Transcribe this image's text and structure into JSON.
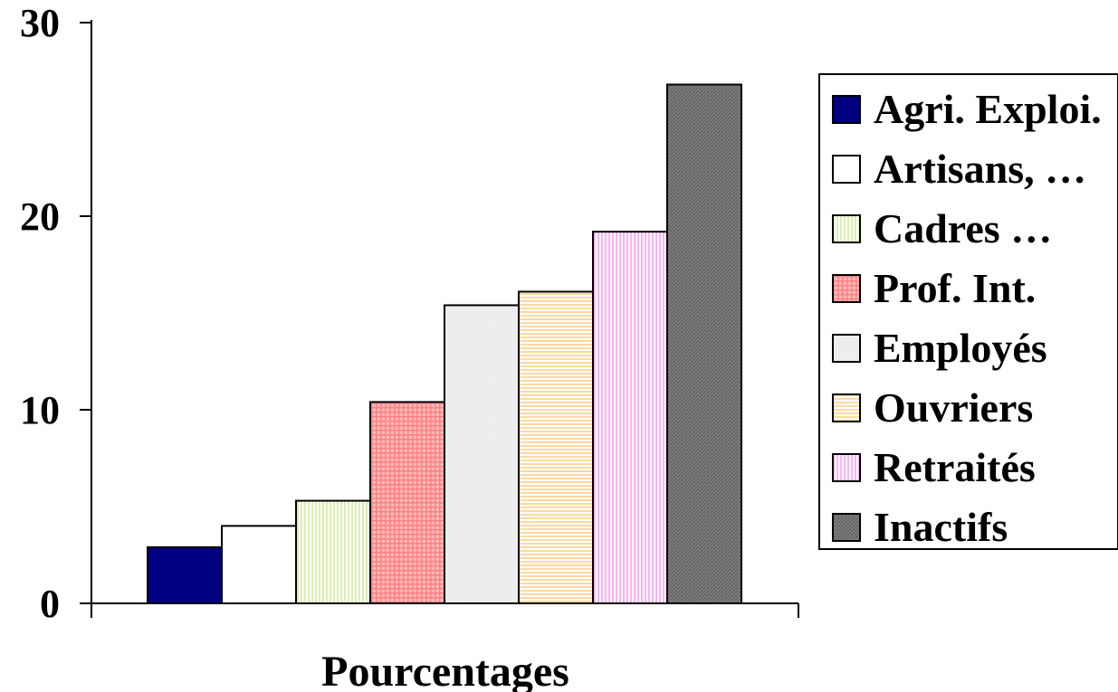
{
  "chart_data": {
    "type": "bar",
    "xlabel": "Pourcentages",
    "ylabel": "",
    "ylim": [
      0,
      30
    ],
    "yticks": [
      0,
      10,
      20,
      30
    ],
    "legend_position": "right",
    "grid": false,
    "series": [
      {
        "name": "Agri. Exploi.",
        "value": 2.9,
        "color": "#000080",
        "pattern": "solid"
      },
      {
        "name": "Artisans, …",
        "value": 4.0,
        "color": "#ffffff",
        "pattern": "solid"
      },
      {
        "name": "Cadres …",
        "value": 5.3,
        "color": "#d9f0b0",
        "pattern": "vlines"
      },
      {
        "name": "Prof. Int.",
        "value": 10.4,
        "color": "#ff8080",
        "pattern": "grid"
      },
      {
        "name": "Employés",
        "value": 15.4,
        "color": "#e4e4e4",
        "pattern": "dots"
      },
      {
        "name": "Ouvriers",
        "value": 16.1,
        "color": "#ffd9a0",
        "pattern": "hlines"
      },
      {
        "name": "Retraités",
        "value": 19.2,
        "color": "#ffb0ff",
        "pattern": "vlines"
      },
      {
        "name": "Inactifs",
        "value": 26.8,
        "color": "#808080",
        "pattern": "diag"
      }
    ]
  }
}
